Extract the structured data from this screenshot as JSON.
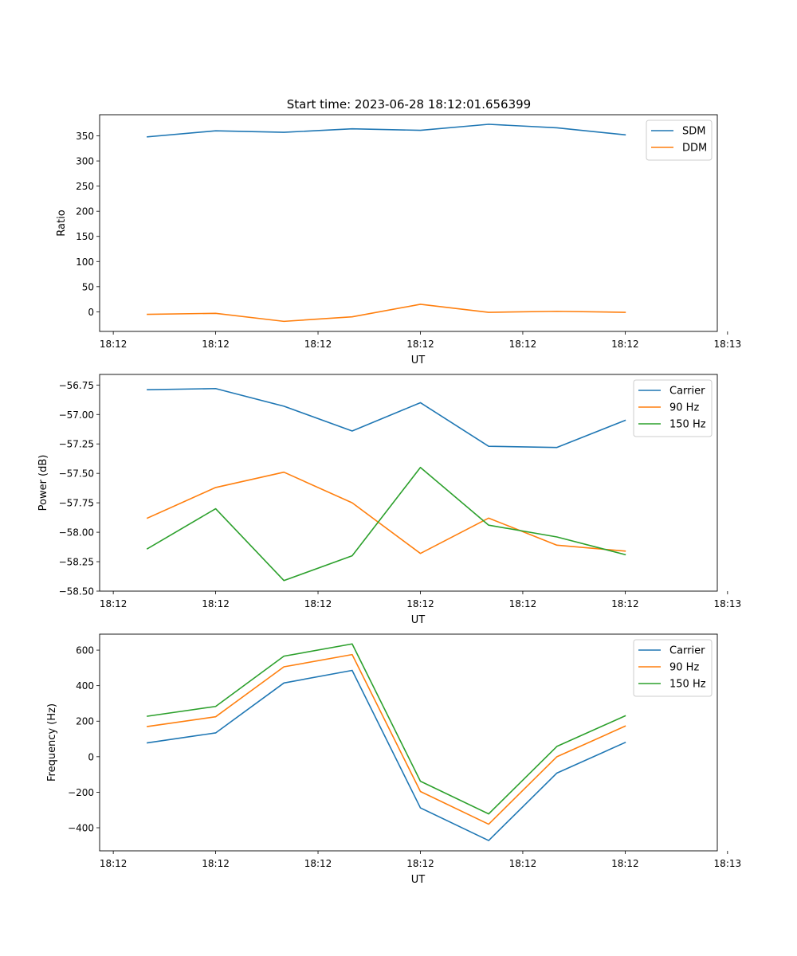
{
  "figure_title": "Start time: 2023-06-28 18:12:01.656399",
  "chart_data": [
    {
      "type": "line",
      "title": "Start time: 2023-06-28 18:12:01.656399",
      "xlabel": "UT",
      "ylabel": "Ratio",
      "x": [
        1,
        2,
        3,
        4,
        5,
        6,
        7,
        8
      ],
      "xlim": [
        0.3,
        9.35
      ],
      "x_ticks": [
        0.5,
        2,
        3.5,
        5,
        6.5,
        8,
        9.5
      ],
      "x_tick_labels": [
        "18:12",
        "18:12",
        "18:12",
        "18:12",
        "18:12",
        "18:12",
        "18:13"
      ],
      "ylim": [
        -39,
        392
      ],
      "y_ticks": [
        0,
        50,
        100,
        150,
        200,
        250,
        300,
        350
      ],
      "y_tick_labels": [
        "0",
        "50",
        "100",
        "150",
        "200",
        "250",
        "300",
        "350"
      ],
      "legend": "top-right",
      "series": [
        {
          "name": "SDM",
          "color": "#1f77b4",
          "values": [
            348,
            360,
            357,
            364,
            361,
            373,
            366,
            352
          ]
        },
        {
          "name": "DDM",
          "color": "#ff7f0e",
          "values": [
            -5,
            -3,
            -19,
            -10,
            15,
            -1,
            1,
            -1
          ]
        }
      ]
    },
    {
      "type": "line",
      "xlabel": "UT",
      "ylabel": "Power (dB)",
      "x": [
        1,
        2,
        3,
        4,
        5,
        6,
        7,
        8
      ],
      "xlim": [
        0.3,
        9.35
      ],
      "x_ticks": [
        0.5,
        2,
        3.5,
        5,
        6.5,
        8,
        9.5
      ],
      "x_tick_labels": [
        "18:12",
        "18:12",
        "18:12",
        "18:12",
        "18:12",
        "18:12",
        "18:13"
      ],
      "ylim": [
        -58.5,
        -56.66
      ],
      "y_ticks": [
        -58.5,
        -58.25,
        -58.0,
        -57.75,
        -57.5,
        -57.25,
        -57.0,
        -56.75
      ],
      "y_tick_labels": [
        "−58.50",
        "−58.25",
        "−58.00",
        "−57.75",
        "−57.50",
        "−57.25",
        "−57.00",
        "−56.75"
      ],
      "legend": "top-right",
      "series": [
        {
          "name": "Carrier",
          "color": "#1f77b4",
          "values": [
            -56.79,
            -56.78,
            -56.93,
            -57.14,
            -56.9,
            -57.27,
            -57.28,
            -57.05
          ]
        },
        {
          "name": "90 Hz",
          "color": "#ff7f0e",
          "values": [
            -57.88,
            -57.62,
            -57.49,
            -57.75,
            -58.18,
            -57.88,
            -58.11,
            -58.16
          ]
        },
        {
          "name": "150 Hz",
          "color": "#2ca02c",
          "values": [
            -58.14,
            -57.8,
            -58.41,
            -58.2,
            -57.45,
            -57.94,
            -58.04,
            -58.19
          ]
        }
      ]
    },
    {
      "type": "line",
      "xlabel": "UT",
      "ylabel": "Frequency (Hz)",
      "x": [
        1,
        2,
        3,
        4,
        5,
        6,
        7,
        8
      ],
      "xlim": [
        0.3,
        9.35
      ],
      "x_ticks": [
        0.5,
        2,
        3.5,
        5,
        6.5,
        8,
        9.5
      ],
      "x_tick_labels": [
        "18:12",
        "18:12",
        "18:12",
        "18:12",
        "18:12",
        "18:12",
        "18:13"
      ],
      "ylim": [
        -530,
        690
      ],
      "y_ticks": [
        -400,
        -200,
        0,
        200,
        400,
        600
      ],
      "y_tick_labels": [
        "−400",
        "−200",
        "0",
        "200",
        "400",
        "600"
      ],
      "legend": "top-right",
      "series": [
        {
          "name": "Carrier",
          "color": "#1f77b4",
          "values": [
            78,
            134,
            415,
            486,
            -288,
            -472,
            -92,
            80
          ]
        },
        {
          "name": "90 Hz",
          "color": "#ff7f0e",
          "values": [
            170,
            225,
            506,
            575,
            -196,
            -380,
            0,
            172
          ]
        },
        {
          "name": "150 Hz",
          "color": "#2ca02c",
          "values": [
            228,
            283,
            566,
            635,
            -138,
            -322,
            58,
            230
          ]
        }
      ]
    }
  ]
}
